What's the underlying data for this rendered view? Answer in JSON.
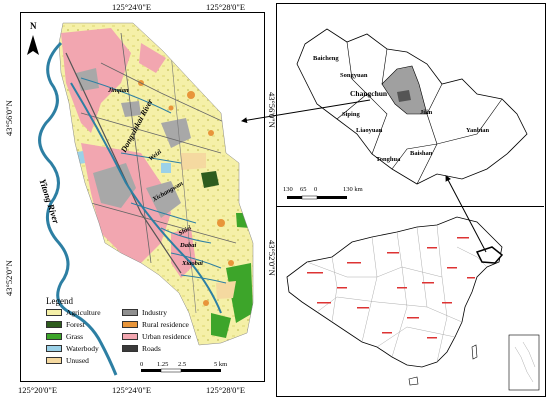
{
  "left_map": {
    "coords_top": [
      "125°24'0\"E",
      "125°28'0\"E"
    ],
    "coords_bottom": [
      "125°20'0\"E",
      "125°24'0\"E",
      "125°28'0\"E"
    ],
    "coords_left": [
      "43°56'0\"N",
      "43°52'0\"N"
    ],
    "coords_right": [
      "43°56'0\"N",
      "43°52'0\"N"
    ],
    "north_label": "N",
    "river_labels": {
      "yitong": "Yitong  River",
      "dongxinkai": "Dongxinkai  River",
      "jinqian": "Jinqian",
      "weizi": "Weizi",
      "xichangwan": "Xichangwan",
      "shizi": "Shizi",
      "dabai": "Dabai",
      "xiaobai": "Xiaobai"
    },
    "legend": {
      "title": "Legend",
      "items": [
        {
          "label": "Agriculture",
          "color": "#f5f0a8"
        },
        {
          "label": "Industry",
          "color": "#8f8f8f"
        },
        {
          "label": "Forest",
          "color": "#2e5c1e"
        },
        {
          "label": "Rural residence",
          "color": "#e8953a"
        },
        {
          "label": "Grass",
          "color": "#3da52a"
        },
        {
          "label": "Urban residence",
          "color": "#f2a6b0"
        },
        {
          "label": "Waterbody",
          "color": "#9bd1e8"
        },
        {
          "label": "Roads",
          "color": "#3a3a3a"
        },
        {
          "label": "Unused",
          "color": "#f5d9a0"
        }
      ]
    },
    "scale": {
      "ticks": [
        "0",
        "1.25",
        "2.5",
        "5 km"
      ]
    }
  },
  "jilin_map": {
    "labels": [
      "Baicheng",
      "Songyuan",
      "Changchun",
      "Siping",
      "Jilin",
      "Liaoyuan",
      "Yanbian",
      "Baishan",
      "Tonghua"
    ],
    "scale": {
      "ticks": [
        "130",
        "65",
        "0",
        "130 km"
      ]
    }
  },
  "colors": {
    "water": "#2d7fa3",
    "urban": "#f2a6b0",
    "agri": "#f5f0a8",
    "industry": "#a8a8a8",
    "grass": "#3da52a",
    "rural": "#e8953a",
    "waterbody": "#9bd1e8",
    "province": "#a0a0a0"
  }
}
